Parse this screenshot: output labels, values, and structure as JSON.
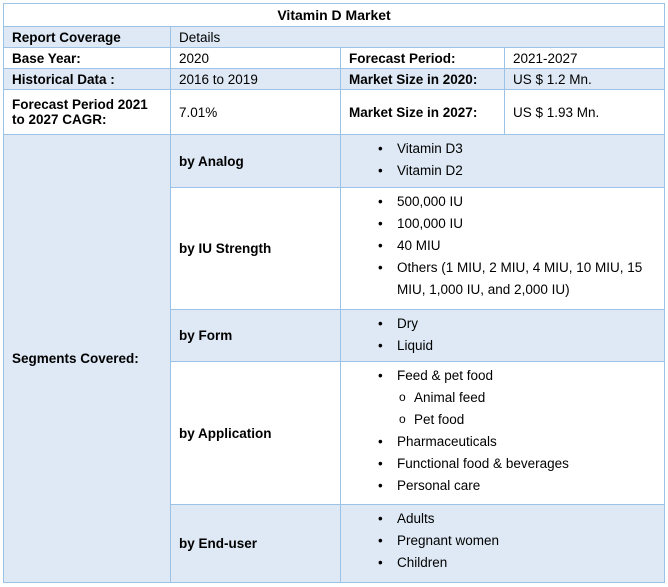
{
  "title": "Vitamin D Market",
  "coverage": {
    "label": "Report Coverage",
    "value": "Details"
  },
  "facts": {
    "base_year": {
      "label": "Base Year:",
      "value": "2020"
    },
    "forecast_period": {
      "label": "Forecast Period:",
      "value": "2021-2027"
    },
    "historical_data": {
      "label": "Historical Data :",
      "value": "2016 to 2019"
    },
    "market_size_2020": {
      "label": "Market Size in 2020:",
      "value": "US $ 1.2 Mn."
    },
    "cagr": {
      "label": "Forecast Period 2021 to 2027 CAGR:",
      "value": "7.01%"
    },
    "market_size_2027": {
      "label": "Market Size in 2027:",
      "value": "US $ 1.93 Mn."
    }
  },
  "segments": {
    "label": "Segments Covered:",
    "groups": [
      {
        "name": "by Analog",
        "items": [
          {
            "text": "Vitamin D3",
            "level": 1
          },
          {
            "text": "Vitamin D2",
            "level": 1
          }
        ]
      },
      {
        "name": "by IU Strength",
        "items": [
          {
            "text": "500,000 IU",
            "level": 1
          },
          {
            "text": "100,000 IU",
            "level": 1
          },
          {
            "text": "40 MIU",
            "level": 1
          },
          {
            "text": "Others (1 MIU, 2 MIU, 4 MIU, 10 MIU, 15 MIU, 1,000 IU, and 2,000 IU)",
            "level": 1
          }
        ]
      },
      {
        "name": "by Form",
        "items": [
          {
            "text": "Dry",
            "level": 1
          },
          {
            "text": "Liquid",
            "level": 1
          }
        ]
      },
      {
        "name": "by Application",
        "items": [
          {
            "text": "Feed & pet food",
            "level": 1
          },
          {
            "text": "Animal feed",
            "level": 2
          },
          {
            "text": "Pet food",
            "level": 2
          },
          {
            "text": "Pharmaceuticals",
            "level": 1
          },
          {
            "text": "Functional food & beverages",
            "level": 1
          },
          {
            "text": "Personal care",
            "level": 1
          }
        ]
      },
      {
        "name": "by End-user",
        "items": [
          {
            "text": "Adults",
            "level": 1
          },
          {
            "text": "Pregnant women",
            "level": 1
          },
          {
            "text": "Children",
            "level": 1
          }
        ]
      }
    ]
  },
  "colors": {
    "band_fill": "#DEE9F5",
    "border": "#9CC2E5",
    "text": "#000000",
    "background": "#FFFFFF"
  }
}
